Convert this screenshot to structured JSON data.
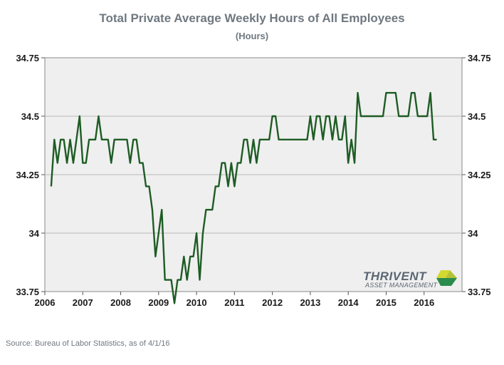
{
  "chart_data": {
    "type": "line",
    "title": "Total Private Average Weekly Hours of All Employees",
    "subtitle": "(Hours)",
    "xlabel": "",
    "ylabel": "",
    "x_ticks": [
      "2006",
      "2007",
      "2008",
      "2009",
      "2010",
      "2011",
      "2012",
      "2013",
      "2014",
      "2015",
      "2016"
    ],
    "y_ticks": [
      "33.75",
      "34",
      "34.25",
      "34.5",
      "34.75"
    ],
    "xlim": [
      2006,
      2017
    ],
    "ylim": [
      33.75,
      34.75
    ],
    "grid": true,
    "grid_axis": "y",
    "secondary_y_axis": true,
    "background_color": "#efefef",
    "series": [
      {
        "color": "#1e5c24",
        "x_start": "2006-03",
        "frequency": "monthly",
        "values": [
          34.2,
          34.4,
          34.3,
          34.4,
          34.4,
          34.3,
          34.4,
          34.3,
          34.4,
          34.5,
          34.3,
          34.3,
          34.4,
          34.4,
          34.4,
          34.5,
          34.4,
          34.4,
          34.4,
          34.3,
          34.4,
          34.4,
          34.4,
          34.4,
          34.4,
          34.3,
          34.4,
          34.4,
          34.3,
          34.3,
          34.2,
          34.2,
          34.1,
          33.9,
          34.0,
          34.1,
          33.8,
          33.8,
          33.8,
          33.7,
          33.8,
          33.8,
          33.9,
          33.8,
          33.9,
          33.9,
          34.0,
          33.8,
          34.0,
          34.1,
          34.1,
          34.1,
          34.2,
          34.2,
          34.3,
          34.3,
          34.2,
          34.3,
          34.2,
          34.3,
          34.3,
          34.4,
          34.4,
          34.3,
          34.4,
          34.3,
          34.4,
          34.4,
          34.4,
          34.4,
          34.5,
          34.5,
          34.4,
          34.4,
          34.4,
          34.4,
          34.4,
          34.4,
          34.4,
          34.4,
          34.4,
          34.4,
          34.5,
          34.4,
          34.5,
          34.5,
          34.4,
          34.5,
          34.5,
          34.4,
          34.5,
          34.4,
          34.4,
          34.5,
          34.3,
          34.4,
          34.3,
          34.6,
          34.5,
          34.5,
          34.5,
          34.5,
          34.5,
          34.5,
          34.5,
          34.5,
          34.6,
          34.6,
          34.6,
          34.6,
          34.5,
          34.5,
          34.5,
          34.5,
          34.6,
          34.6,
          34.5,
          34.5,
          34.5,
          34.5,
          34.6,
          34.4,
          34.4
        ]
      }
    ]
  },
  "logo": {
    "name": "THRIVENT",
    "tagline": "ASSET MANAGEMENT",
    "colors": [
      "#d3d930",
      "#b4c236",
      "#2b8b4c"
    ]
  },
  "source": "Source: Bureau of Labor Statistics, as of 4/1/16"
}
